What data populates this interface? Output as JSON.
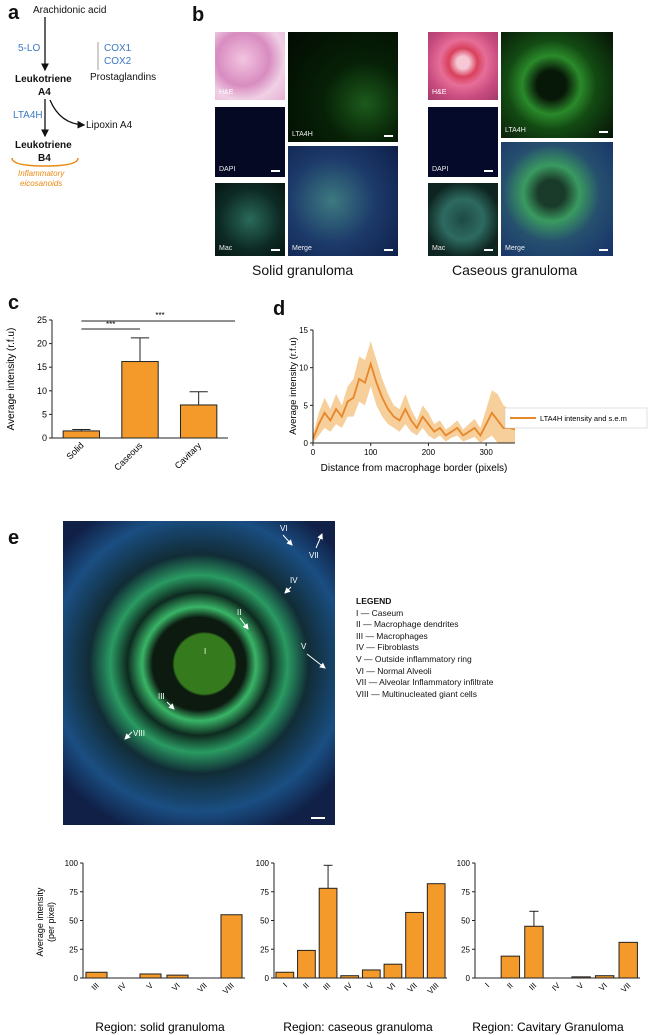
{
  "panel_labels": {
    "a": "a",
    "b": "b",
    "c": "c",
    "d": "d",
    "e": "e"
  },
  "pathway": {
    "arachidonic": "Arachidonic acid",
    "lo5": "5-LO",
    "cox1": "COX1",
    "cox2": "COX2",
    "prostaglandins": "Prostaglandins",
    "lta4_line1": "Leukotriene",
    "lta4_line2": "A4",
    "lta4h": "LTA4H",
    "lipoxin": "Lipoxin A4",
    "ltb4_line1": "Leukotriene",
    "ltb4_line2": "B4",
    "inflam_line1": "Inflammatory",
    "inflam_line2": "eicosanoids"
  },
  "micro": {
    "he": "H&E",
    "lta4h": "LTA4H",
    "dapi": "DAPI",
    "mac": "Mac",
    "merge": "Merge",
    "solid_caption": "Solid granuloma",
    "caseous_caption": "Caseous granuloma"
  },
  "colors": {
    "bar": "#f39a2b",
    "bar_stroke": "#222",
    "line": "#e8862a",
    "band": "#f6cf9a",
    "text_blue": "#3a78c2",
    "text_orange": "#e88a14"
  },
  "chart_data": [
    {
      "type": "bar",
      "id": "c",
      "categories": [
        "Solid",
        "Caseous",
        "Cavitary"
      ],
      "values": [
        1.5,
        16.2,
        7.0
      ],
      "errors": [
        0.3,
        5.0,
        2.8
      ],
      "ylabel": "Average intensity (r.f.u)",
      "ylim": [
        0,
        25
      ],
      "yticks": [
        0,
        5,
        10,
        15,
        20,
        25
      ],
      "significance": [
        "***",
        "***"
      ]
    },
    {
      "type": "line",
      "id": "d",
      "x": [
        0,
        10,
        20,
        30,
        40,
        50,
        60,
        70,
        80,
        90,
        100,
        110,
        120,
        130,
        140,
        150,
        160,
        170,
        180,
        190,
        200,
        210,
        220,
        230,
        240,
        250,
        260,
        270,
        280,
        290,
        300,
        310,
        320,
        330,
        340,
        350
      ],
      "y": [
        0.5,
        2.5,
        4.0,
        3.0,
        4.5,
        3.5,
        5.5,
        6.0,
        8.5,
        8.0,
        10.5,
        8.0,
        6.0,
        4.5,
        3.5,
        3.0,
        4.5,
        3.0,
        2.0,
        3.5,
        2.5,
        1.5,
        2.0,
        1.0,
        1.5,
        2.0,
        1.0,
        1.5,
        2.0,
        1.0,
        2.5,
        4.0,
        3.0,
        2.0,
        2.0,
        1.8
      ],
      "err": [
        0.5,
        1.5,
        2.0,
        1.5,
        2.0,
        1.5,
        2.0,
        2.5,
        3.0,
        3.0,
        3.0,
        3.0,
        2.5,
        2.0,
        1.5,
        1.5,
        2.0,
        1.5,
        1.0,
        1.5,
        1.5,
        1.0,
        1.0,
        0.8,
        0.8,
        1.0,
        0.8,
        1.0,
        1.2,
        1.0,
        2.0,
        3.0,
        3.5,
        3.0,
        2.5,
        2.0
      ],
      "xlabel": "Distance from macrophage border (pixels)",
      "ylabel": "Average intensity (r.f.u)",
      "xlim": [
        0,
        350
      ],
      "ylim": [
        0,
        15
      ],
      "xticks": [
        0,
        100,
        200,
        300
      ],
      "yticks": [
        0,
        5,
        10,
        15
      ],
      "legend": "LTA4H intensity and s.e.m"
    },
    {
      "type": "bar",
      "id": "e1",
      "categories": [
        "III",
        "IV",
        "V",
        "VI",
        "VII",
        "VIII"
      ],
      "values": [
        5,
        0,
        3.5,
        2.5,
        0,
        55
      ],
      "ylabel_line1": "Average intensity",
      "ylabel_line2": "(per pixel)",
      "ylim": [
        0,
        100
      ],
      "yticks": [
        0,
        25,
        50,
        75,
        100
      ],
      "xlabel": "Region: solid granuloma"
    },
    {
      "type": "bar",
      "id": "e2",
      "categories": [
        "I",
        "II",
        "III",
        "IV",
        "V",
        "VI",
        "VII",
        "VIII"
      ],
      "values": [
        5,
        24,
        78,
        2,
        7,
        12,
        57,
        82
      ],
      "errors": [
        0,
        0,
        20,
        0,
        0,
        0,
        0,
        0
      ],
      "ylim": [
        0,
        100
      ],
      "yticks": [
        0,
        25,
        50,
        75,
        100
      ],
      "xlabel": "Region: caseous granuloma"
    },
    {
      "type": "bar",
      "id": "e3",
      "categories": [
        "I",
        "II",
        "III",
        "IV",
        "V",
        "VI",
        "VII"
      ],
      "values": [
        0,
        19,
        45,
        0,
        1,
        2,
        31
      ],
      "errors": [
        0,
        0,
        13,
        0,
        0,
        0,
        0
      ],
      "ylim": [
        0,
        100
      ],
      "yticks": [
        0,
        25,
        50,
        75,
        100
      ],
      "xlabel": "Region: Cavitary Granuloma"
    }
  ],
  "legend_e": {
    "title": "LEGEND",
    "items": [
      "I — Caseum",
      "II — Macrophage dendrites",
      "III — Macrophages",
      "IV — Fibroblasts",
      "V — Outside inflammatory ring",
      "VI — Normal Alveoli",
      "VII — Alveolar Inflammatory infiltrate",
      "VIII — Multinucleated giant cells"
    ]
  },
  "image_e_labels": [
    "I",
    "II",
    "III",
    "IV",
    "V",
    "VI",
    "VII",
    "VIII"
  ]
}
